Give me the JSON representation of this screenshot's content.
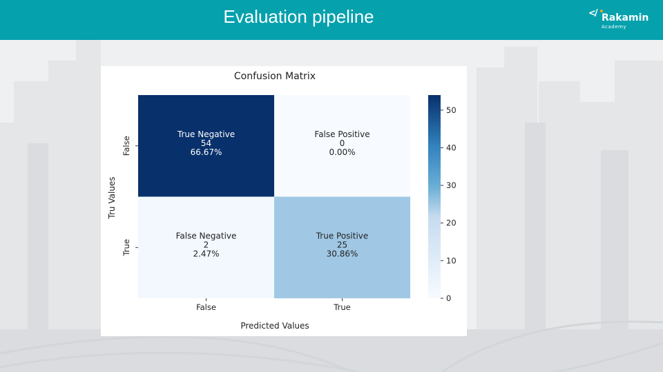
{
  "header": {
    "title": "Evaluation pipeline",
    "logo": {
      "mark": "</",
      "name": "Rakamin",
      "sub": "Academy"
    }
  },
  "colors": {
    "header_bg": "#05a1ad",
    "cmap_low": "#f7fbff",
    "cmap_mid": "#6baed6",
    "cmap_high": "#08306b"
  },
  "chart_data": {
    "type": "heatmap",
    "title": "Confusion Matrix",
    "xlabel": "Predicted Values",
    "ylabel": "Tru Values",
    "x_categories": [
      "False",
      "True"
    ],
    "y_categories": [
      "False",
      "True"
    ],
    "cells": [
      [
        {
          "name": "True Negative",
          "count": "54",
          "percent": "66.67%",
          "value": 54
        },
        {
          "name": "False Positive",
          "count": "0",
          "percent": "0.00%",
          "value": 0
        }
      ],
      [
        {
          "name": "False Negative",
          "count": "2",
          "percent": "2.47%",
          "value": 2
        },
        {
          "name": "True Positive",
          "count": "25",
          "percent": "30.86%",
          "value": 25
        }
      ]
    ],
    "colorbar": {
      "min": 0,
      "max": 54,
      "ticks": [
        "0",
        "10",
        "20",
        "30",
        "40",
        "50"
      ]
    }
  }
}
